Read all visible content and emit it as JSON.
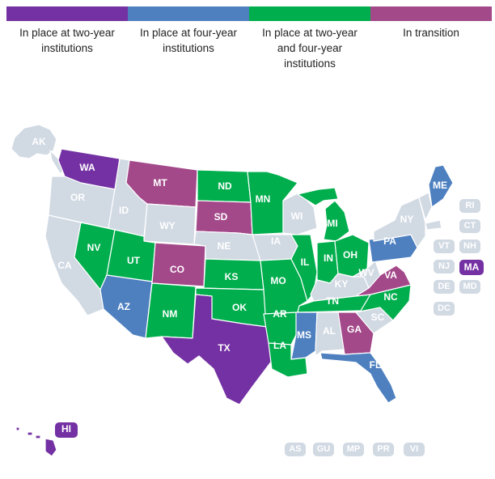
{
  "colors": {
    "two_year": "#7431a3",
    "four_year": "#4e80c0",
    "both": "#00ae4d",
    "transition": "#a3498a",
    "none": "#d1d9e3",
    "border": "#ffffff"
  },
  "legend": [
    {
      "label": "In place at two-year institutions",
      "status": "two_year"
    },
    {
      "label": "In place at four-year institutions",
      "status": "four_year"
    },
    {
      "label": "In place at two-year and four-year institutions",
      "status": "both"
    },
    {
      "label": "In transition",
      "status": "transition"
    }
  ],
  "states": {
    "AK": "none",
    "WA": "two_year",
    "OR": "none",
    "CA": "none",
    "NV": "both",
    "ID": "none",
    "MT": "transition",
    "WY": "none",
    "UT": "both",
    "AZ": "four_year",
    "CO": "transition",
    "NM": "both",
    "ND": "both",
    "SD": "transition",
    "NE": "none",
    "KS": "both",
    "OK": "both",
    "TX": "two_year",
    "MN": "both",
    "IA": "none",
    "MO": "both",
    "AR": "both",
    "LA": "both",
    "WI": "none",
    "IL": "both",
    "MI": "both",
    "IN": "both",
    "OH": "both",
    "KY": "none",
    "TN": "both",
    "MS": "four_year",
    "AL": "none",
    "GA": "transition",
    "FL": "four_year",
    "SC": "none",
    "NC": "both",
    "VA": "transition",
    "WV": "none",
    "PA": "four_year",
    "NY": "none",
    "ME": "four_year",
    "HI": "two_year"
  },
  "small_states": [
    {
      "code": "RI",
      "status": "none"
    },
    {
      "code": "CT",
      "status": "none"
    },
    {
      "code": "VT",
      "status": "none"
    },
    {
      "code": "NH",
      "status": "none"
    },
    {
      "code": "NJ",
      "status": "none"
    },
    {
      "code": "MA",
      "status": "two_year"
    },
    {
      "code": "DE",
      "status": "none"
    },
    {
      "code": "MD",
      "status": "none"
    },
    {
      "code": "DC",
      "status": "none"
    }
  ],
  "territories": [
    {
      "code": "AS",
      "status": "none"
    },
    {
      "code": "GU",
      "status": "none"
    },
    {
      "code": "MP",
      "status": "none"
    },
    {
      "code": "PR",
      "status": "none"
    },
    {
      "code": "VI",
      "status": "none"
    }
  ]
}
